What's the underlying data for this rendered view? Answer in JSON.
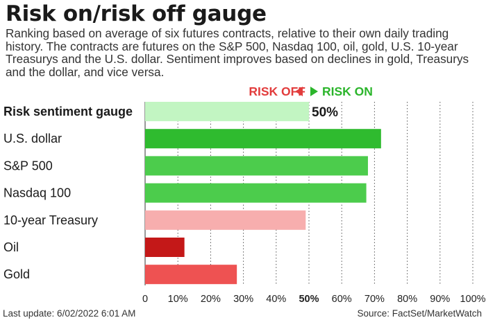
{
  "title": "Risk on/risk off gauge",
  "subtitle": "Ranking based on average of six futures contracts, relative to their own daily trading history. The contracts are futures on the S&P 500, Nasdaq 100, oil, gold, U.S. 10-year Treasurys and the U.S. dollar. Sentiment improves based on declines in gold, Treasurys and the dollar, and vice versa.",
  "risk_off_label": "RISK OFF",
  "risk_on_label": "RISK ON",
  "footer": {
    "last_update": "Last update: 6/02/2022 6:01 AM",
    "source": "Source: FactSet/MarketWatch"
  },
  "colors": {
    "risk_off": "#e23c3c",
    "risk_on": "#2bb52b"
  },
  "chart_data": {
    "type": "bar",
    "orientation": "horizontal",
    "categories": [
      "Risk sentiment gauge",
      "U.S. dollar",
      "S&P 500",
      "Nasdaq 100",
      "10-year Treasury",
      "Oil",
      "Gold"
    ],
    "values": [
      50,
      72,
      68,
      67.5,
      49,
      12,
      28
    ],
    "value_labels": [
      "50%",
      "",
      "",
      "",
      "",
      "",
      ""
    ],
    "bar_colors": [
      "#c2f5c2",
      "#2fbb2f",
      "#4ccc4c",
      "#4ccc4c",
      "#f7aeae",
      "#c41818",
      "#ee5252"
    ],
    "xlim": [
      0,
      100
    ],
    "x_ticks": [
      "0",
      "10%",
      "20%",
      "30%",
      "40%",
      "50%",
      "60%",
      "70%",
      "80%",
      "90%",
      "100%"
    ],
    "highlight_tick": "50%",
    "grid": "vertical dotted"
  }
}
